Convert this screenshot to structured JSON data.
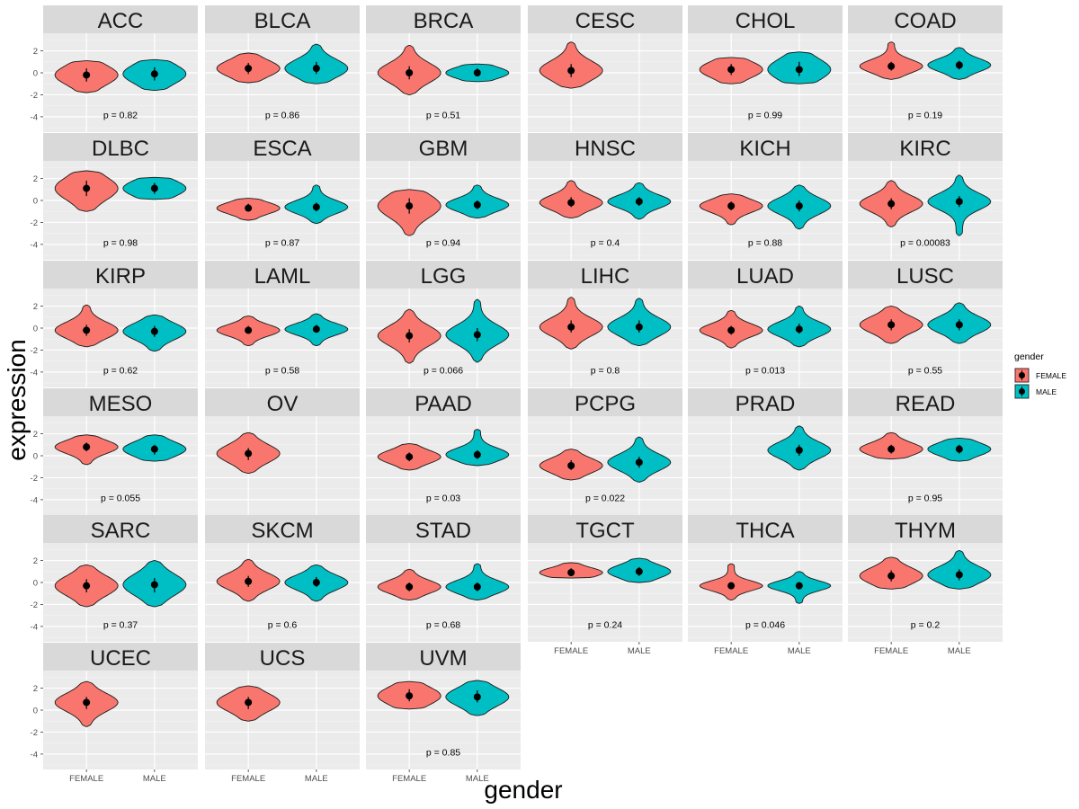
{
  "chart_data": {
    "type": "violin",
    "xlabel": "gender",
    "ylabel": "expression",
    "categories": [
      "FEMALE",
      "MALE"
    ],
    "y_ticks": [
      2,
      0,
      -2,
      -4
    ],
    "ylim": [
      -5.4,
      3.6
    ],
    "legend": {
      "title": "gender",
      "position": "right",
      "entries": [
        {
          "name": "FEMALE",
          "color": "#F8766D"
        },
        {
          "name": "MALE",
          "color": "#00BFC4"
        }
      ]
    },
    "facets": [
      {
        "name": "ACC",
        "p": "p = 0.82",
        "FEMALE": {
          "median": -0.2,
          "min": -1.8,
          "max": 1.1,
          "q1": -0.8,
          "q3": 0.4
        },
        "MALE": {
          "median": -0.1,
          "min": -1.6,
          "max": 1.2,
          "q1": -0.7,
          "q3": 0.5
        }
      },
      {
        "name": "BLCA",
        "p": "p = 0.86",
        "FEMALE": {
          "median": 0.4,
          "min": -0.9,
          "max": 1.8,
          "q1": -0.1,
          "q3": 0.9
        },
        "MALE": {
          "median": 0.4,
          "min": -1.0,
          "max": 2.6,
          "q1": -0.1,
          "q3": 1.0
        }
      },
      {
        "name": "BRCA",
        "p": "p = 0.51",
        "FEMALE": {
          "median": 0.0,
          "min": -2.0,
          "max": 2.5,
          "q1": -0.6,
          "q3": 0.6
        },
        "MALE": {
          "median": 0.0,
          "min": -0.8,
          "max": 0.8,
          "q1": -0.3,
          "q3": 0.4
        }
      },
      {
        "name": "CESC",
        "p": "",
        "FEMALE": {
          "median": 0.2,
          "min": -1.4,
          "max": 2.8,
          "q1": -0.4,
          "q3": 0.8
        },
        "MALE": null
      },
      {
        "name": "CHOL",
        "p": "p = 0.99",
        "FEMALE": {
          "median": 0.3,
          "min": -1.0,
          "max": 1.4,
          "q1": -0.2,
          "q3": 0.8
        },
        "MALE": {
          "median": 0.3,
          "min": -1.0,
          "max": 1.9,
          "q1": -0.3,
          "q3": 1.0
        }
      },
      {
        "name": "COAD",
        "p": "p = 0.19",
        "FEMALE": {
          "median": 0.6,
          "min": -0.6,
          "max": 2.8,
          "q1": 0.2,
          "q3": 1.0
        },
        "MALE": {
          "median": 0.7,
          "min": -0.6,
          "max": 2.3,
          "q1": 0.3,
          "q3": 1.1
        }
      },
      {
        "name": "DLBC",
        "p": "p = 0.98",
        "FEMALE": {
          "median": 1.1,
          "min": -1.0,
          "max": 2.7,
          "q1": 0.4,
          "q3": 1.8
        },
        "MALE": {
          "median": 1.1,
          "min": 0.1,
          "max": 2.1,
          "q1": 0.6,
          "q3": 1.6
        }
      },
      {
        "name": "ESCA",
        "p": "p = 0.87",
        "FEMALE": {
          "median": -0.7,
          "min": -1.8,
          "max": 0.2,
          "q1": -1.0,
          "q3": -0.3
        },
        "MALE": {
          "median": -0.6,
          "min": -2.1,
          "max": 1.4,
          "q1": -1.0,
          "q3": -0.2
        }
      },
      {
        "name": "GBM",
        "p": "p = 0.94",
        "FEMALE": {
          "median": -0.5,
          "min": -3.2,
          "max": 1.0,
          "q1": -1.2,
          "q3": 0.2
        },
        "MALE": {
          "median": -0.4,
          "min": -1.6,
          "max": 1.4,
          "q1": -0.8,
          "q3": 0.0
        }
      },
      {
        "name": "HNSC",
        "p": "p = 0.4",
        "FEMALE": {
          "median": -0.2,
          "min": -1.6,
          "max": 1.8,
          "q1": -0.6,
          "q3": 0.3
        },
        "MALE": {
          "median": -0.1,
          "min": -1.7,
          "max": 1.6,
          "q1": -0.5,
          "q3": 0.3
        }
      },
      {
        "name": "KICH",
        "p": "p = 0.88",
        "FEMALE": {
          "median": -0.5,
          "min": -2.2,
          "max": 0.6,
          "q1": -0.9,
          "q3": -0.1
        },
        "MALE": {
          "median": -0.5,
          "min": -2.6,
          "max": 1.4,
          "q1": -1.0,
          "q3": 0.0
        }
      },
      {
        "name": "KIRC",
        "p": "p = 0.00083",
        "FEMALE": {
          "median": -0.3,
          "min": -2.4,
          "max": 1.8,
          "q1": -0.8,
          "q3": 0.2
        },
        "MALE": {
          "median": -0.1,
          "min": -3.2,
          "max": 2.3,
          "q1": -0.6,
          "q3": 0.4
        }
      },
      {
        "name": "KIRP",
        "p": "p = 0.62",
        "FEMALE": {
          "median": -0.2,
          "min": -1.7,
          "max": 2.1,
          "q1": -0.7,
          "q3": 0.3
        },
        "MALE": {
          "median": -0.3,
          "min": -2.1,
          "max": 1.2,
          "q1": -0.8,
          "q3": 0.2
        }
      },
      {
        "name": "LAML",
        "p": "p = 0.58",
        "FEMALE": {
          "median": -0.2,
          "min": -1.6,
          "max": 1.1,
          "q1": -0.5,
          "q3": 0.2
        },
        "MALE": {
          "median": -0.1,
          "min": -1.6,
          "max": 1.3,
          "q1": -0.4,
          "q3": 0.3
        }
      },
      {
        "name": "LGG",
        "p": "p = 0.066",
        "FEMALE": {
          "median": -0.7,
          "min": -3.2,
          "max": 1.7,
          "q1": -1.3,
          "q3": -0.1
        },
        "MALE": {
          "median": -0.6,
          "min": -3.1,
          "max": 2.6,
          "q1": -1.2,
          "q3": 0.0
        }
      },
      {
        "name": "LIHC",
        "p": "p = 0.8",
        "FEMALE": {
          "median": 0.1,
          "min": -1.9,
          "max": 2.8,
          "q1": -0.4,
          "q3": 0.7
        },
        "MALE": {
          "median": 0.1,
          "min": -1.6,
          "max": 2.7,
          "q1": -0.4,
          "q3": 0.7
        }
      },
      {
        "name": "LUAD",
        "p": "p = 0.013",
        "FEMALE": {
          "median": -0.2,
          "min": -1.8,
          "max": 1.6,
          "q1": -0.6,
          "q3": 0.2
        },
        "MALE": {
          "median": -0.1,
          "min": -1.7,
          "max": 2.0,
          "q1": -0.5,
          "q3": 0.4
        }
      },
      {
        "name": "LUSC",
        "p": "p = 0.55",
        "FEMALE": {
          "median": 0.3,
          "min": -1.4,
          "max": 2.0,
          "q1": -0.2,
          "q3": 0.8
        },
        "MALE": {
          "median": 0.3,
          "min": -1.4,
          "max": 2.3,
          "q1": -0.2,
          "q3": 0.8
        }
      },
      {
        "name": "MESO",
        "p": "p = 0.055",
        "FEMALE": {
          "median": 0.8,
          "min": -0.8,
          "max": 1.9,
          "q1": 0.4,
          "q3": 1.2
        },
        "MALE": {
          "median": 0.6,
          "min": -0.5,
          "max": 1.9,
          "q1": 0.1,
          "q3": 1.0
        }
      },
      {
        "name": "OV",
        "p": "",
        "FEMALE": {
          "median": 0.2,
          "min": -1.6,
          "max": 2.1,
          "q1": -0.4,
          "q3": 0.7
        },
        "MALE": null
      },
      {
        "name": "PAAD",
        "p": "p = 0.03",
        "FEMALE": {
          "median": -0.1,
          "min": -1.3,
          "max": 1.1,
          "q1": -0.5,
          "q3": 0.3
        },
        "MALE": {
          "median": 0.1,
          "min": -0.9,
          "max": 2.4,
          "q1": -0.3,
          "q3": 0.5
        }
      },
      {
        "name": "PCPG",
        "p": "p = 0.022",
        "FEMALE": {
          "median": -0.9,
          "min": -2.2,
          "max": 0.6,
          "q1": -1.3,
          "q3": -0.4
        },
        "MALE": {
          "median": -0.6,
          "min": -2.4,
          "max": 1.7,
          "q1": -1.1,
          "q3": -0.1
        }
      },
      {
        "name": "PRAD",
        "p": "",
        "FEMALE": null,
        "MALE": {
          "median": 0.5,
          "min": -1.3,
          "max": 2.7,
          "q1": 0.0,
          "q3": 1.0
        }
      },
      {
        "name": "READ",
        "p": "p = 0.95",
        "FEMALE": {
          "median": 0.6,
          "min": -0.3,
          "max": 2.1,
          "q1": 0.2,
          "q3": 1.0
        },
        "MALE": {
          "median": 0.6,
          "min": -0.5,
          "max": 1.6,
          "q1": 0.2,
          "q3": 1.0
        }
      },
      {
        "name": "SARC",
        "p": "p = 0.37",
        "FEMALE": {
          "median": -0.3,
          "min": -2.2,
          "max": 1.6,
          "q1": -0.9,
          "q3": 0.3
        },
        "MALE": {
          "median": -0.2,
          "min": -2.2,
          "max": 2.0,
          "q1": -0.9,
          "q3": 0.4
        }
      },
      {
        "name": "SKCM",
        "p": "p = 0.6",
        "FEMALE": {
          "median": 0.1,
          "min": -1.7,
          "max": 2.1,
          "q1": -0.4,
          "q3": 0.6
        },
        "MALE": {
          "median": 0.0,
          "min": -1.7,
          "max": 1.6,
          "q1": -0.4,
          "q3": 0.5
        }
      },
      {
        "name": "STAD",
        "p": "p = 0.68",
        "FEMALE": {
          "median": -0.4,
          "min": -1.6,
          "max": 1.2,
          "q1": -0.8,
          "q3": 0.0
        },
        "MALE": {
          "median": -0.4,
          "min": -1.6,
          "max": 1.7,
          "q1": -0.8,
          "q3": 0.0
        }
      },
      {
        "name": "TGCT",
        "p": "p = 0.24",
        "FEMALE": {
          "median": 0.9,
          "min": 0.4,
          "max": 1.8,
          "q1": 0.7,
          "q3": 1.3
        },
        "MALE": {
          "median": 1.0,
          "min": 0.0,
          "max": 2.2,
          "q1": 0.6,
          "q3": 1.4
        }
      },
      {
        "name": "THCA",
        "p": "p = 0.046",
        "FEMALE": {
          "median": -0.3,
          "min": -1.6,
          "max": 1.7,
          "q1": -0.6,
          "q3": 0.0
        },
        "MALE": {
          "median": -0.3,
          "min": -1.9,
          "max": 1.0,
          "q1": -0.6,
          "q3": 0.0
        }
      },
      {
        "name": "THYM",
        "p": "p = 0.2",
        "FEMALE": {
          "median": 0.6,
          "min": -0.6,
          "max": 2.3,
          "q1": 0.1,
          "q3": 1.1
        },
        "MALE": {
          "median": 0.7,
          "min": -0.6,
          "max": 2.9,
          "q1": 0.2,
          "q3": 1.2
        }
      },
      {
        "name": "UCEC",
        "p": "",
        "FEMALE": {
          "median": 0.7,
          "min": -1.5,
          "max": 2.6,
          "q1": 0.1,
          "q3": 1.2
        },
        "MALE": null
      },
      {
        "name": "UCS",
        "p": "",
        "FEMALE": {
          "median": 0.7,
          "min": -1.0,
          "max": 2.2,
          "q1": 0.1,
          "q3": 1.2
        },
        "MALE": null
      },
      {
        "name": "UVM",
        "p": "p = 0.85",
        "FEMALE": {
          "median": 1.3,
          "min": 0.1,
          "max": 2.6,
          "q1": 0.8,
          "q3": 1.9
        },
        "MALE": {
          "median": 1.2,
          "min": -0.5,
          "max": 2.7,
          "q1": 0.7,
          "q3": 1.8
        }
      }
    ]
  }
}
